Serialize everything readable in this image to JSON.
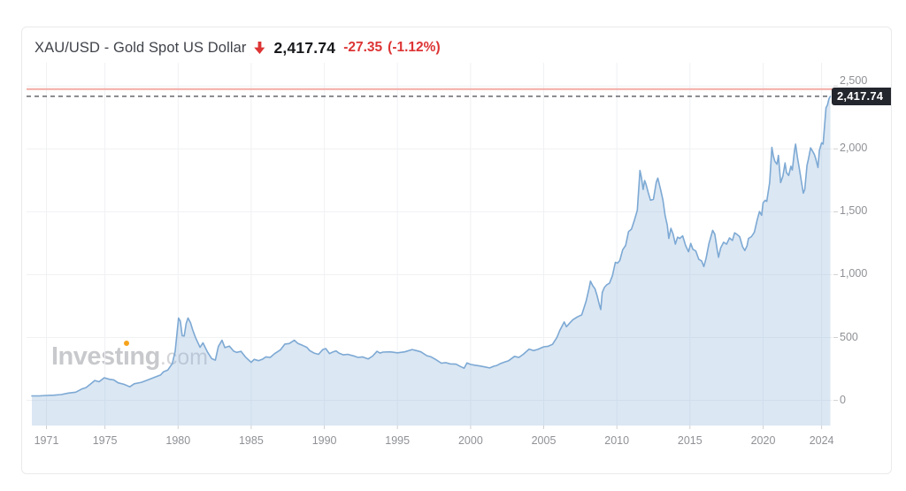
{
  "header": {
    "title": "XAU/USD - Gold Spot US Dollar",
    "direction_icon": "red-down-arrow",
    "last_price": "2,417.74",
    "change": "-27.35",
    "change_percent": "(-1.12%)"
  },
  "watermark": {
    "prefix": "Invest",
    "dotless_i": "ı",
    "rest": "ng",
    "suffix": ".com"
  },
  "price_tag": {
    "text": "2,417.74"
  },
  "colors": {
    "line": "#7da9d4",
    "area_fill": "rgba(125,169,212,0.28)",
    "threshold_line": "#f2aba4",
    "dashed_line": "#45484e",
    "grid": "#f0f1f4",
    "tick": "#cfd0d3",
    "tag_bg": "#23262d",
    "negative_red": "#dd3434",
    "watermark_gray": "#c8c9cc",
    "watermark_orange": "#f6a31c",
    "axis_text": "#8f9196"
  },
  "chart_data": {
    "type": "area",
    "title": "XAU/USD - Gold Spot US Dollar",
    "xlabel": "",
    "ylabel": "",
    "legend": false,
    "grid": true,
    "xlim": [
      1970,
      2024.75
    ],
    "ylim": [
      -200,
      2600
    ],
    "x_ticks": [
      {
        "v": 1971,
        "label": "1971"
      },
      {
        "v": 1975,
        "label": "1975"
      },
      {
        "v": 1980,
        "label": "1980"
      },
      {
        "v": 1985,
        "label": "1985"
      },
      {
        "v": 1990,
        "label": "1990"
      },
      {
        "v": 1995,
        "label": "1995"
      },
      {
        "v": 2000,
        "label": "2000"
      },
      {
        "v": 2005,
        "label": "2005"
      },
      {
        "v": 2010,
        "label": "2010"
      },
      {
        "v": 2015,
        "label": "2015"
      },
      {
        "v": 2020,
        "label": "2020"
      },
      {
        "v": 2024,
        "label": "2024"
      }
    ],
    "y_ticks": [
      {
        "v": 0,
        "label": "0"
      },
      {
        "v": 500,
        "label": "500"
      },
      {
        "v": 1000,
        "label": "1,000"
      },
      {
        "v": 1500,
        "label": "1,500"
      },
      {
        "v": 2000,
        "label": "2,000"
      },
      {
        "v": 2500,
        "label": "2,500"
      }
    ],
    "last_price": 2417.74,
    "threshold_line_value": 2475,
    "series": [
      {
        "name": "XAU/USD",
        "points": [
          [
            1970.0,
            36
          ],
          [
            1970.5,
            36
          ],
          [
            1971.0,
            39
          ],
          [
            1971.5,
            41
          ],
          [
            1972.0,
            46
          ],
          [
            1972.5,
            58
          ],
          [
            1973.0,
            65
          ],
          [
            1973.4,
            90
          ],
          [
            1973.7,
            102
          ],
          [
            1974.0,
            129
          ],
          [
            1974.3,
            158
          ],
          [
            1974.6,
            148
          ],
          [
            1974.95,
            180
          ],
          [
            1975.3,
            168
          ],
          [
            1975.6,
            163
          ],
          [
            1975.9,
            140
          ],
          [
            1976.3,
            128
          ],
          [
            1976.7,
            108
          ],
          [
            1977.0,
            132
          ],
          [
            1977.5,
            144
          ],
          [
            1978.0,
            166
          ],
          [
            1978.5,
            188
          ],
          [
            1978.8,
            202
          ],
          [
            1979.0,
            228
          ],
          [
            1979.3,
            242
          ],
          [
            1979.6,
            292
          ],
          [
            1979.8,
            392
          ],
          [
            1980.03,
            655
          ],
          [
            1980.15,
            630
          ],
          [
            1980.28,
            515
          ],
          [
            1980.42,
            512
          ],
          [
            1980.55,
            612
          ],
          [
            1980.68,
            655
          ],
          [
            1980.85,
            618
          ],
          [
            1981.0,
            560
          ],
          [
            1981.2,
            498
          ],
          [
            1981.5,
            422
          ],
          [
            1981.7,
            458
          ],
          [
            1982.0,
            386
          ],
          [
            1982.3,
            332
          ],
          [
            1982.55,
            320
          ],
          [
            1982.75,
            428
          ],
          [
            1983.0,
            478
          ],
          [
            1983.2,
            420
          ],
          [
            1983.5,
            432
          ],
          [
            1983.8,
            392
          ],
          [
            1984.0,
            382
          ],
          [
            1984.3,
            390
          ],
          [
            1984.6,
            346
          ],
          [
            1985.0,
            302
          ],
          [
            1985.2,
            326
          ],
          [
            1985.5,
            316
          ],
          [
            1985.8,
            330
          ],
          [
            1986.0,
            346
          ],
          [
            1986.3,
            342
          ],
          [
            1986.6,
            372
          ],
          [
            1987.0,
            402
          ],
          [
            1987.3,
            448
          ],
          [
            1987.6,
            452
          ],
          [
            1987.95,
            478
          ],
          [
            1988.2,
            452
          ],
          [
            1988.5,
            438
          ],
          [
            1988.8,
            422
          ],
          [
            1989.0,
            396
          ],
          [
            1989.3,
            376
          ],
          [
            1989.6,
            366
          ],
          [
            1989.9,
            404
          ],
          [
            1990.1,
            412
          ],
          [
            1990.35,
            372
          ],
          [
            1990.6,
            386
          ],
          [
            1990.8,
            394
          ],
          [
            1991.0,
            376
          ],
          [
            1991.3,
            362
          ],
          [
            1991.6,
            366
          ],
          [
            1992.0,
            354
          ],
          [
            1992.3,
            342
          ],
          [
            1992.6,
            346
          ],
          [
            1993.0,
            330
          ],
          [
            1993.3,
            352
          ],
          [
            1993.6,
            390
          ],
          [
            1993.8,
            376
          ],
          [
            1994.0,
            384
          ],
          [
            1994.5,
            386
          ],
          [
            1995.0,
            378
          ],
          [
            1995.5,
            386
          ],
          [
            1996.0,
            404
          ],
          [
            1996.3,
            396
          ],
          [
            1996.6,
            386
          ],
          [
            1997.0,
            356
          ],
          [
            1997.3,
            346
          ],
          [
            1997.6,
            326
          ],
          [
            1998.0,
            296
          ],
          [
            1998.3,
            300
          ],
          [
            1998.6,
            290
          ],
          [
            1999.0,
            288
          ],
          [
            1999.3,
            270
          ],
          [
            1999.55,
            256
          ],
          [
            1999.75,
            298
          ],
          [
            2000.0,
            286
          ],
          [
            2000.3,
            280
          ],
          [
            2000.6,
            274
          ],
          [
            2001.0,
            266
          ],
          [
            2001.3,
            258
          ],
          [
            2001.6,
            272
          ],
          [
            2001.8,
            278
          ],
          [
            2002.0,
            290
          ],
          [
            2002.3,
            304
          ],
          [
            2002.6,
            316
          ],
          [
            2003.0,
            350
          ],
          [
            2003.3,
            342
          ],
          [
            2003.6,
            366
          ],
          [
            2004.0,
            408
          ],
          [
            2004.3,
            396
          ],
          [
            2004.6,
            406
          ],
          [
            2005.0,
            426
          ],
          [
            2005.3,
            430
          ],
          [
            2005.6,
            446
          ],
          [
            2005.9,
            500
          ],
          [
            2006.1,
            556
          ],
          [
            2006.4,
            624
          ],
          [
            2006.55,
            586
          ],
          [
            2006.8,
            618
          ],
          [
            2007.0,
            642
          ],
          [
            2007.3,
            664
          ],
          [
            2007.6,
            680
          ],
          [
            2007.9,
            790
          ],
          [
            2008.1,
            892
          ],
          [
            2008.2,
            948
          ],
          [
            2008.35,
            912
          ],
          [
            2008.5,
            888
          ],
          [
            2008.65,
            832
          ],
          [
            2008.8,
            762
          ],
          [
            2008.9,
            722
          ],
          [
            2009.0,
            858
          ],
          [
            2009.15,
            898
          ],
          [
            2009.3,
            918
          ],
          [
            2009.5,
            932
          ],
          [
            2009.7,
            992
          ],
          [
            2009.9,
            1098
          ],
          [
            2010.05,
            1092
          ],
          [
            2010.2,
            1112
          ],
          [
            2010.4,
            1198
          ],
          [
            2010.6,
            1232
          ],
          [
            2010.8,
            1342
          ],
          [
            2011.0,
            1362
          ],
          [
            2011.2,
            1432
          ],
          [
            2011.4,
            1512
          ],
          [
            2011.58,
            1828
          ],
          [
            2011.68,
            1772
          ],
          [
            2011.8,
            1678
          ],
          [
            2011.9,
            1748
          ],
          [
            2012.0,
            1718
          ],
          [
            2012.15,
            1652
          ],
          [
            2012.3,
            1592
          ],
          [
            2012.5,
            1598
          ],
          [
            2012.7,
            1736
          ],
          [
            2012.8,
            1768
          ],
          [
            2013.0,
            1672
          ],
          [
            2013.15,
            1592
          ],
          [
            2013.3,
            1472
          ],
          [
            2013.45,
            1392
          ],
          [
            2013.55,
            1288
          ],
          [
            2013.7,
            1368
          ],
          [
            2013.85,
            1322
          ],
          [
            2014.0,
            1242
          ],
          [
            2014.15,
            1298
          ],
          [
            2014.3,
            1288
          ],
          [
            2014.5,
            1308
          ],
          [
            2014.7,
            1232
          ],
          [
            2014.9,
            1182
          ],
          [
            2015.05,
            1248
          ],
          [
            2015.2,
            1202
          ],
          [
            2015.4,
            1188
          ],
          [
            2015.6,
            1122
          ],
          [
            2015.8,
            1108
          ],
          [
            2015.95,
            1064
          ],
          [
            2016.1,
            1128
          ],
          [
            2016.3,
            1248
          ],
          [
            2016.55,
            1352
          ],
          [
            2016.7,
            1322
          ],
          [
            2016.85,
            1208
          ],
          [
            2016.95,
            1138
          ],
          [
            2017.1,
            1212
          ],
          [
            2017.3,
            1258
          ],
          [
            2017.5,
            1242
          ],
          [
            2017.7,
            1292
          ],
          [
            2017.9,
            1272
          ],
          [
            2018.05,
            1332
          ],
          [
            2018.2,
            1322
          ],
          [
            2018.4,
            1302
          ],
          [
            2018.6,
            1222
          ],
          [
            2018.75,
            1192
          ],
          [
            2018.9,
            1228
          ],
          [
            2019.0,
            1288
          ],
          [
            2019.2,
            1302
          ],
          [
            2019.4,
            1338
          ],
          [
            2019.6,
            1438
          ],
          [
            2019.75,
            1502
          ],
          [
            2019.9,
            1472
          ],
          [
            2020.0,
            1572
          ],
          [
            2020.15,
            1592
          ],
          [
            2020.25,
            1582
          ],
          [
            2020.45,
            1732
          ],
          [
            2020.6,
            2012
          ],
          [
            2020.7,
            1942
          ],
          [
            2020.8,
            1902
          ],
          [
            2020.95,
            1878
          ],
          [
            2021.05,
            1948
          ],
          [
            2021.2,
            1732
          ],
          [
            2021.35,
            1782
          ],
          [
            2021.5,
            1888
          ],
          [
            2021.6,
            1812
          ],
          [
            2021.75,
            1788
          ],
          [
            2021.9,
            1862
          ],
          [
            2022.0,
            1832
          ],
          [
            2022.15,
            1988
          ],
          [
            2022.22,
            2038
          ],
          [
            2022.35,
            1932
          ],
          [
            2022.5,
            1828
          ],
          [
            2022.6,
            1752
          ],
          [
            2022.75,
            1648
          ],
          [
            2022.85,
            1678
          ],
          [
            2023.0,
            1868
          ],
          [
            2023.1,
            1918
          ],
          [
            2023.25,
            2008
          ],
          [
            2023.35,
            1988
          ],
          [
            2023.5,
            1958
          ],
          [
            2023.6,
            1922
          ],
          [
            2023.75,
            1852
          ],
          [
            2023.85,
            1988
          ],
          [
            2024.0,
            2048
          ],
          [
            2024.1,
            2038
          ],
          [
            2024.2,
            2178
          ],
          [
            2024.3,
            2328
          ],
          [
            2024.4,
            2348
          ],
          [
            2024.5,
            2398
          ],
          [
            2024.6,
            2417.74
          ]
        ]
      }
    ]
  }
}
